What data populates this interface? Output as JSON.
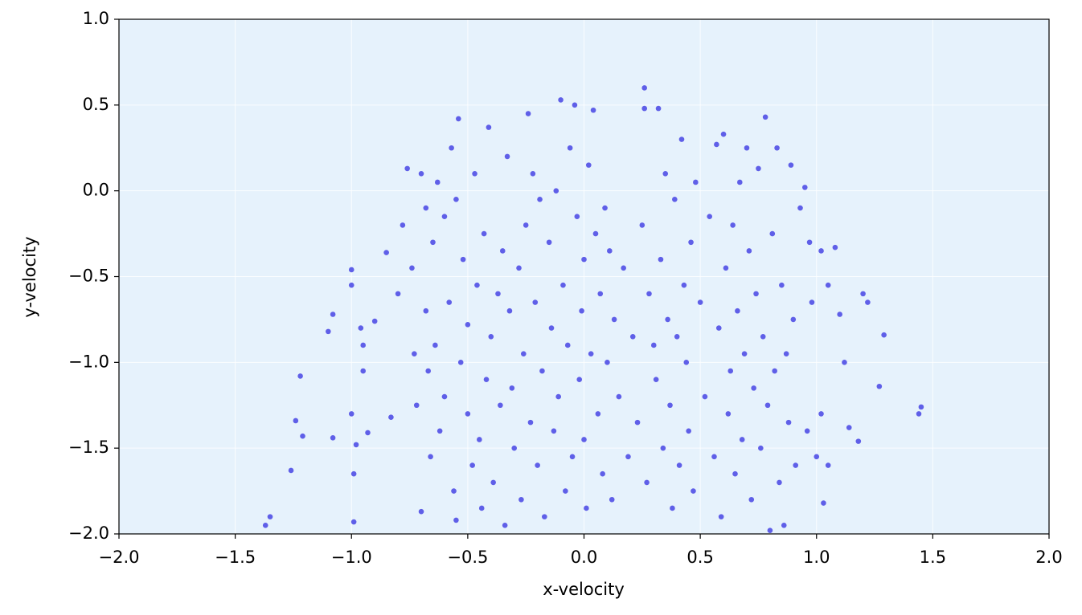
{
  "chart_data": {
    "type": "scatter",
    "xlabel": "x-velocity",
    "ylabel": "y-velocity",
    "color": "#5f5fe8",
    "background": "#e6f2fc",
    "grid": true,
    "xlim": [
      -2,
      2
    ],
    "ylim": [
      -2,
      1
    ],
    "xticks": [
      {
        "value": -2,
        "label": "−2.0"
      },
      {
        "value": -1.5,
        "label": "−1.5"
      },
      {
        "value": -1,
        "label": "−1.0"
      },
      {
        "value": -0.5,
        "label": "−0.5"
      },
      {
        "value": 0,
        "label": "0.0"
      },
      0.5,
      {
        "value": 1,
        "label": "1.0"
      },
      1.5,
      {
        "value": 2,
        "label": "2.0"
      }
    ],
    "yticks": [
      {
        "value": -2,
        "label": "−2.0"
      },
      {
        "value": -1.5,
        "label": "−1.5"
      },
      {
        "value": -1,
        "label": "−1.0"
      },
      {
        "value": -0.5,
        "label": "−0.5"
      },
      {
        "value": 0,
        "label": "0.0"
      },
      0.5,
      {
        "value": 1,
        "label": "1.0"
      }
    ],
    "x": [
      -1.37,
      -1.35,
      -1.26,
      -1.24,
      -1.22,
      -1.21,
      -1.1,
      -1.08,
      -1.08,
      -1.0,
      -1.0,
      -1.0,
      -0.99,
      -0.99,
      -0.98,
      -0.96,
      -0.95,
      -0.95,
      -0.93,
      -0.9,
      -0.85,
      -0.83,
      -0.8,
      -0.78,
      -0.76,
      -0.74,
      -0.73,
      -0.72,
      -0.7,
      -0.7,
      -0.68,
      -0.68,
      -0.67,
      -0.66,
      -0.65,
      -0.64,
      -0.63,
      -0.62,
      -0.6,
      -0.6,
      -0.58,
      -0.57,
      -0.56,
      -0.55,
      -0.55,
      -0.54,
      -0.53,
      -0.52,
      -0.5,
      -0.5,
      -0.48,
      -0.47,
      -0.46,
      -0.45,
      -0.44,
      -0.43,
      -0.42,
      -0.41,
      -0.4,
      -0.39,
      -0.37,
      -0.36,
      -0.35,
      -0.34,
      -0.33,
      -0.32,
      -0.31,
      -0.3,
      -0.28,
      -0.27,
      -0.26,
      -0.25,
      -0.24,
      -0.23,
      -0.22,
      -0.21,
      -0.2,
      -0.19,
      -0.18,
      -0.17,
      -0.15,
      -0.14,
      -0.13,
      -0.12,
      -0.11,
      -0.1,
      -0.09,
      -0.08,
      -0.07,
      -0.06,
      -0.05,
      -0.04,
      -0.03,
      -0.02,
      -0.01,
      0.0,
      0.0,
      0.01,
      0.02,
      0.03,
      0.04,
      0.05,
      0.06,
      0.07,
      0.08,
      0.09,
      0.1,
      0.11,
      0.12,
      0.13,
      0.15,
      0.17,
      0.19,
      0.21,
      0.23,
      0.25,
      0.26,
      0.26,
      0.27,
      0.28,
      0.3,
      0.31,
      0.32,
      0.33,
      0.34,
      0.35,
      0.36,
      0.37,
      0.38,
      0.39,
      0.4,
      0.41,
      0.42,
      0.43,
      0.44,
      0.45,
      0.46,
      0.47,
      0.48,
      0.5,
      0.52,
      0.54,
      0.56,
      0.57,
      0.58,
      0.59,
      0.6,
      0.61,
      0.62,
      0.63,
      0.64,
      0.65,
      0.66,
      0.67,
      0.68,
      0.69,
      0.7,
      0.71,
      0.72,
      0.73,
      0.74,
      0.75,
      0.76,
      0.77,
      0.78,
      0.79,
      0.8,
      0.81,
      0.82,
      0.83,
      0.84,
      0.85,
      0.86,
      0.87,
      0.88,
      0.89,
      0.9,
      0.91,
      0.93,
      0.95,
      0.96,
      0.97,
      0.98,
      1.0,
      1.02,
      1.02,
      1.03,
      1.05,
      1.05,
      1.08,
      1.1,
      1.12,
      1.14,
      1.18,
      1.2,
      1.22,
      1.27,
      1.29,
      1.44,
      1.45
    ],
    "values": [
      -1.95,
      -1.9,
      -1.63,
      -1.34,
      -1.08,
      -1.43,
      -0.82,
      -0.72,
      -1.44,
      -0.46,
      -0.55,
      -1.3,
      -1.65,
      -1.93,
      -1.48,
      -0.8,
      -0.9,
      -1.05,
      -1.41,
      -0.76,
      -0.36,
      -1.32,
      -0.6,
      -0.2,
      0.13,
      -0.45,
      -0.95,
      -1.25,
      -1.87,
      0.1,
      -0.1,
      -0.7,
      -1.05,
      -1.55,
      -0.3,
      -0.9,
      0.05,
      -1.4,
      -0.15,
      -1.2,
      -0.65,
      0.25,
      -1.75,
      -0.05,
      -1.92,
      0.42,
      -1.0,
      -0.4,
      -1.3,
      -0.78,
      -1.6,
      0.1,
      -0.55,
      -1.45,
      -1.85,
      -0.25,
      -1.1,
      0.37,
      -0.85,
      -1.7,
      -0.6,
      -1.25,
      -0.35,
      -1.95,
      0.2,
      -0.7,
      -1.15,
      -1.5,
      -0.45,
      -1.8,
      -0.95,
      -0.2,
      0.45,
      -1.35,
      0.1,
      -0.65,
      -1.6,
      -0.05,
      -1.05,
      -1.9,
      -0.3,
      -0.8,
      -1.4,
      0.0,
      -1.2,
      0.53,
      -0.55,
      -1.75,
      -0.9,
      0.25,
      -1.55,
      0.5,
      -0.15,
      -1.1,
      -0.7,
      -1.45,
      -0.4,
      -1.85,
      0.15,
      -0.95,
      0.47,
      -0.25,
      -1.3,
      -0.6,
      -1.65,
      -0.1,
      -1.0,
      -0.35,
      -1.8,
      -0.75,
      -1.2,
      -0.45,
      -1.55,
      -0.85,
      -1.35,
      -0.2,
      0.6,
      0.48,
      -1.7,
      -0.6,
      -0.9,
      -1.1,
      0.48,
      -0.4,
      -1.5,
      0.1,
      -0.75,
      -1.25,
      -1.85,
      -0.05,
      -0.85,
      -1.6,
      0.3,
      -0.55,
      -1.0,
      -1.4,
      -0.3,
      -1.75,
      0.05,
      -0.65,
      -1.2,
      -0.15,
      -1.55,
      0.27,
      -0.8,
      -1.9,
      0.33,
      -0.45,
      -1.3,
      -1.05,
      -0.2,
      -1.65,
      -0.7,
      0.05,
      -1.45,
      -0.95,
      0.25,
      -0.35,
      -1.8,
      -1.15,
      -0.6,
      0.13,
      -1.5,
      -0.85,
      0.43,
      -1.25,
      -1.98,
      -0.25,
      -1.05,
      0.25,
      -1.7,
      -0.55,
      -1.95,
      -0.95,
      -1.35,
      0.15,
      -0.75,
      -1.6,
      -0.1,
      0.02,
      -1.4,
      -0.3,
      -0.65,
      -1.55,
      -0.35,
      -1.3,
      -1.82,
      -0.55,
      -1.6,
      -0.33,
      -0.72,
      -1.0,
      -1.38,
      -1.46,
      -0.6,
      -0.65,
      -1.14,
      -0.84,
      -1.3,
      -1.26
    ]
  }
}
